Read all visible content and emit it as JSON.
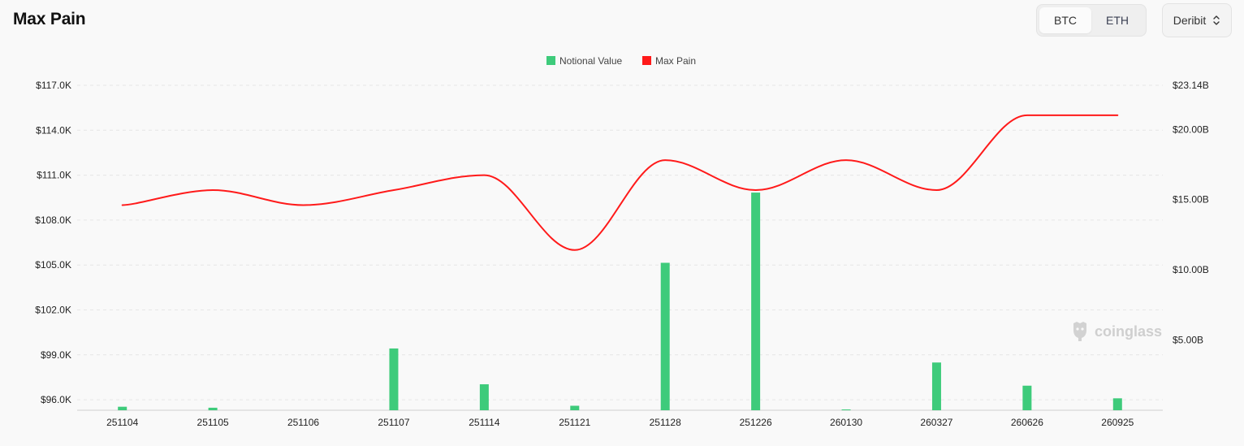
{
  "header": {
    "title": "Max Pain",
    "assets": [
      "BTC",
      "ETH"
    ],
    "active_asset": "BTC",
    "exchange": "Deribit"
  },
  "watermark": "coinglass",
  "colors": {
    "bar": "#3ecb7b",
    "line": "#ff1a1a",
    "grid": "#e6e6e6",
    "axis_text": "#222222"
  },
  "chart_data": {
    "type": "bar",
    "categories": [
      "251104",
      "251105",
      "251106",
      "251107",
      "251114",
      "251121",
      "251128",
      "251226",
      "260130",
      "260327",
      "260626",
      "260925"
    ],
    "legend": [
      "Notional Value",
      "Max Pain"
    ],
    "legend_position": "top-center",
    "series": [
      {
        "name": "Notional Value",
        "type": "bar",
        "axis": "right",
        "values": [
          0.25,
          0.18,
          0.0,
          4.4,
          1.85,
          0.32,
          10.5,
          15.5,
          0.05,
          3.4,
          1.75,
          0.85
        ]
      },
      {
        "name": "Max Pain",
        "type": "line",
        "axis": "left",
        "values": [
          109000,
          110000,
          109000,
          110000,
          111000,
          106000,
          112000,
          110000,
          112000,
          110000,
          115000,
          115000
        ]
      }
    ],
    "y_left": {
      "ticks": [
        "$117.0K",
        "$114.0K",
        "$111.0K",
        "$108.0K",
        "$105.0K",
        "$102.0K",
        "$99.0K",
        "$96.0K"
      ],
      "tick_values": [
        117000,
        114000,
        111000,
        108000,
        105000,
        102000,
        99000,
        96000
      ],
      "ylim": [
        95300,
        117000
      ]
    },
    "y_right": {
      "ticks": [
        "$23.14B",
        "$20.00B",
        "$15.00B",
        "$10.00B",
        "$5.00B"
      ],
      "tick_values": [
        23.14,
        20.0,
        15.0,
        10.0,
        5.0
      ],
      "ylim": [
        0,
        23.14
      ]
    },
    "grid": true
  }
}
